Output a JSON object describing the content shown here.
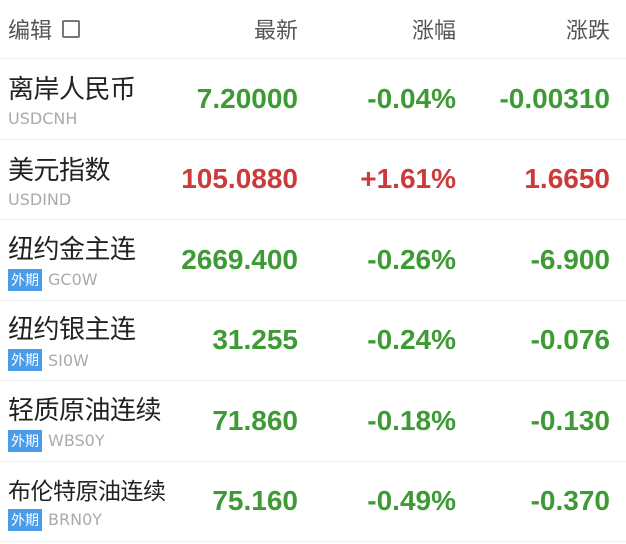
{
  "header": {
    "edit_label": "编辑",
    "latest": "最新",
    "change_pct": "涨幅",
    "change": "涨跌"
  },
  "colors": {
    "up": "#cc3b3b",
    "down": "#3d9a34",
    "badge": "#4a9be8"
  },
  "rows": [
    {
      "name": "离岸人民币",
      "code": "USDCNH",
      "badge": "",
      "price": "7.20000",
      "pct": "-0.04%",
      "chg": "-0.00310",
      "dir": "down"
    },
    {
      "name": "美元指数",
      "code": "USDIND",
      "badge": "",
      "price": "105.0880",
      "pct": "+1.61%",
      "chg": "1.6650",
      "dir": "up"
    },
    {
      "name": "纽约金主连",
      "code": "GC0W",
      "badge": "外期",
      "price": "2669.400",
      "pct": "-0.26%",
      "chg": "-6.900",
      "dir": "down"
    },
    {
      "name": "纽约银主连",
      "code": "SI0W",
      "badge": "外期",
      "price": "31.255",
      "pct": "-0.24%",
      "chg": "-0.076",
      "dir": "down"
    },
    {
      "name": "轻质原油连续",
      "code": "WBS0Y",
      "badge": "外期",
      "price": "71.860",
      "pct": "-0.18%",
      "chg": "-0.130",
      "dir": "down"
    },
    {
      "name": "布伦特原油连续",
      "code": "BRN0Y",
      "badge": "外期",
      "price": "75.160",
      "pct": "-0.49%",
      "chg": "-0.370",
      "dir": "down"
    }
  ]
}
